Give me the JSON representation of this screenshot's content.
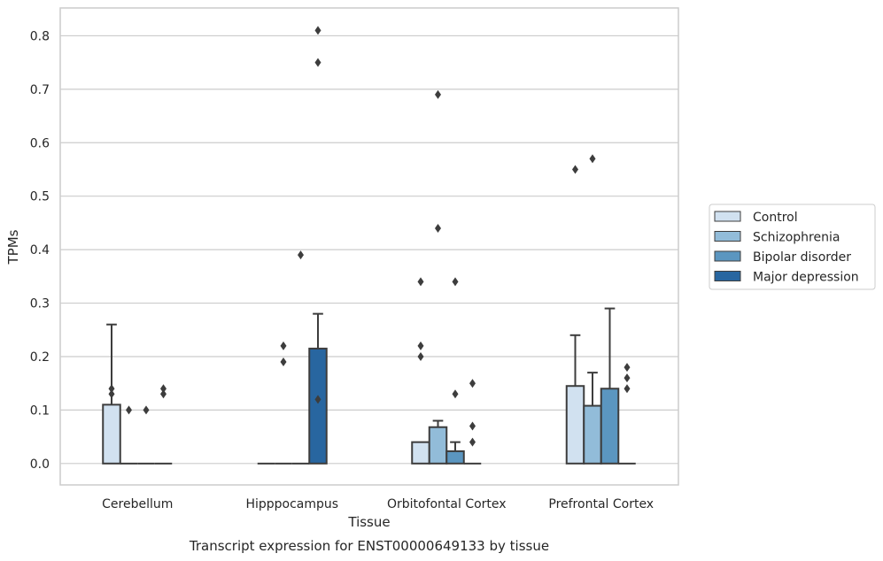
{
  "chart_data": {
    "type": "bar",
    "title": "",
    "xlabel": "Tissue",
    "ylabel": "TPMs",
    "caption": "Transcript expression for ENST00000649133 by tissue",
    "ylim": [
      -0.04,
      0.852
    ],
    "yticks": [
      0.0,
      0.1,
      0.2,
      0.3,
      0.4,
      0.5,
      0.6,
      0.7,
      0.8
    ],
    "ytick_labels": [
      "0.0",
      "0.1",
      "0.2",
      "0.3",
      "0.4",
      "0.5",
      "0.6",
      "0.7",
      "0.8"
    ],
    "grid": true,
    "legend_position": "right",
    "categories": [
      "Cerebellum",
      "Hipppocampus",
      "Orbitofontal Cortex",
      "Prefrontal Cortex"
    ],
    "series": [
      {
        "name": "Control",
        "color": "#d1e1f0",
        "values": [
          0.11,
          0.0,
          0.04,
          0.145
        ],
        "error_upper": [
          0.26,
          null,
          null,
          0.24
        ],
        "outliers": [
          [
            0.13,
            0.14
          ],
          [],
          [
            0.2,
            0.22,
            0.34
          ],
          [
            0.55
          ]
        ]
      },
      {
        "name": "Schizophrenia",
        "color": "#92bcd9",
        "values": [
          0.0,
          0.0,
          0.068,
          0.108
        ],
        "error_upper": [
          null,
          null,
          0.08,
          0.17
        ],
        "outliers": [
          [
            0.1
          ],
          [
            0.19,
            0.22
          ],
          [
            0.44,
            0.69
          ],
          [
            0.57
          ]
        ]
      },
      {
        "name": "Bipolar disorder",
        "color": "#5b96c0",
        "values": [
          0.0,
          0.0,
          0.023,
          0.14
        ],
        "error_upper": [
          null,
          null,
          0.04,
          0.29
        ],
        "outliers": [
          [
            0.1
          ],
          [
            0.39
          ],
          [
            0.13,
            0.34
          ],
          []
        ]
      },
      {
        "name": "Major depression",
        "color": "#2866a0",
        "values": [
          0.0,
          0.215,
          0.0,
          0.0
        ],
        "error_upper": [
          null,
          0.28,
          null,
          null
        ],
        "outliers": [
          [
            0.13,
            0.14
          ],
          [
            0.12,
            0.75,
            0.81
          ],
          [
            0.04,
            0.07,
            0.15
          ],
          [
            0.14,
            0.16,
            0.18
          ]
        ]
      }
    ]
  }
}
